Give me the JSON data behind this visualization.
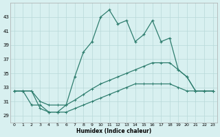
{
  "x": [
    0,
    1,
    2,
    3,
    4,
    5,
    6,
    7,
    8,
    9,
    10,
    11,
    12,
    13,
    14,
    15,
    16,
    17,
    18,
    19,
    20,
    21,
    22,
    23
  ],
  "line1": [
    32.5,
    32.5,
    30.5,
    30.5,
    29.5,
    29.5,
    30.5,
    34.5,
    38.0,
    39.5,
    43.0,
    44.0,
    42.0,
    42.5,
    39.5,
    40.5,
    42.5,
    39.5,
    40.0,
    35.5,
    34.5,
    32.5,
    32.5,
    32.5
  ],
  "line2": [
    32.5,
    32.5,
    32.5,
    31.0,
    30.5,
    30.5,
    30.5,
    31.2,
    32.0,
    32.8,
    33.5,
    34.0,
    34.5,
    35.0,
    35.5,
    36.0,
    36.5,
    36.5,
    36.5,
    35.5,
    34.5,
    32.5,
    32.5,
    32.5
  ],
  "line3": [
    32.5,
    32.5,
    32.5,
    30.0,
    29.5,
    29.5,
    29.5,
    30.0,
    30.5,
    31.0,
    31.5,
    32.0,
    32.5,
    33.0,
    33.5,
    33.5,
    33.5,
    33.5,
    33.5,
    33.0,
    32.5,
    32.5,
    32.5,
    32.5
  ],
  "line_color": "#2e7d6e",
  "bg_color": "#d8f0f0",
  "grid_color": "#b8d8d8",
  "xlabel": "Humidex (Indice chaleur)",
  "ylim": [
    28,
    45
  ],
  "xlim": [
    -0.5,
    23.5
  ],
  "yticks": [
    29,
    31,
    33,
    35,
    37,
    39,
    41,
    43
  ],
  "xticks": [
    0,
    1,
    2,
    3,
    4,
    5,
    6,
    7,
    8,
    9,
    10,
    11,
    12,
    13,
    14,
    15,
    16,
    17,
    18,
    19,
    20,
    21,
    22,
    23
  ]
}
